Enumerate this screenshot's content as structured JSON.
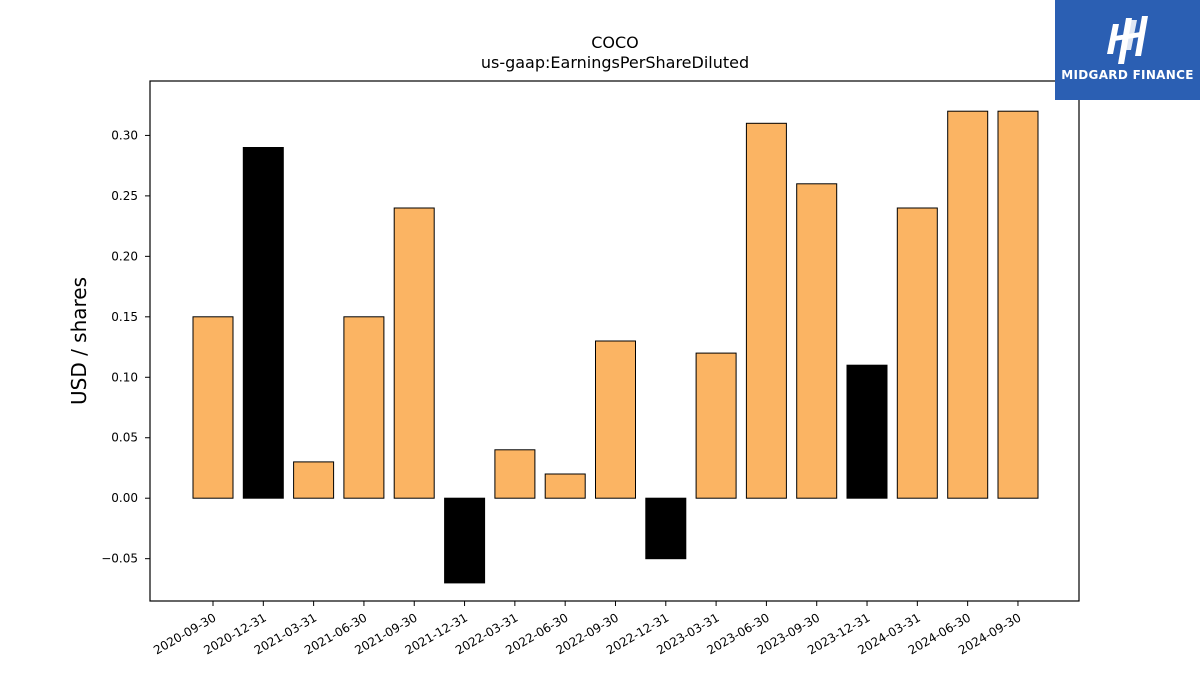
{
  "logo": {
    "text": "MIDGARD FINANCE",
    "background": "#2b5fb3",
    "icon": "midgard-finance-logo-icon"
  },
  "chart_data": {
    "type": "bar",
    "title": "COCO",
    "subtitle": "us-gaap:EarningsPerShareDiluted",
    "xlabel": "",
    "ylabel": "USD / shares",
    "ylim": [
      -0.085,
      0.345
    ],
    "yticks": [
      -0.05,
      0.0,
      0.05,
      0.1,
      0.15,
      0.2,
      0.25,
      0.3
    ],
    "ytick_labels": [
      "−0.05",
      "0.00",
      "0.05",
      "0.10",
      "0.15",
      "0.20",
      "0.25",
      "0.30"
    ],
    "grid": false,
    "categories": [
      "2020-09-30",
      "2020-12-31",
      "2021-03-31",
      "2021-06-30",
      "2021-09-30",
      "2021-12-31",
      "2022-03-31",
      "2022-06-30",
      "2022-09-30",
      "2022-12-31",
      "2023-03-31",
      "2023-06-30",
      "2023-09-30",
      "2023-12-31",
      "2024-03-31",
      "2024-06-30",
      "2024-09-30"
    ],
    "values": [
      0.15,
      0.29,
      0.03,
      0.15,
      0.24,
      -0.07,
      0.04,
      0.02,
      0.13,
      -0.05,
      0.12,
      0.31,
      0.26,
      0.11,
      0.24,
      0.32,
      0.32
    ],
    "bar_colors": [
      "#fbb463",
      "#000000",
      "#fbb463",
      "#fbb463",
      "#fbb463",
      "#000000",
      "#fbb463",
      "#fbb463",
      "#fbb463",
      "#000000",
      "#fbb463",
      "#fbb463",
      "#fbb463",
      "#000000",
      "#fbb463",
      "#fbb463",
      "#fbb463"
    ],
    "colors": {
      "quarter": "#fbb463",
      "fiscal_year_end": "#000000"
    }
  }
}
